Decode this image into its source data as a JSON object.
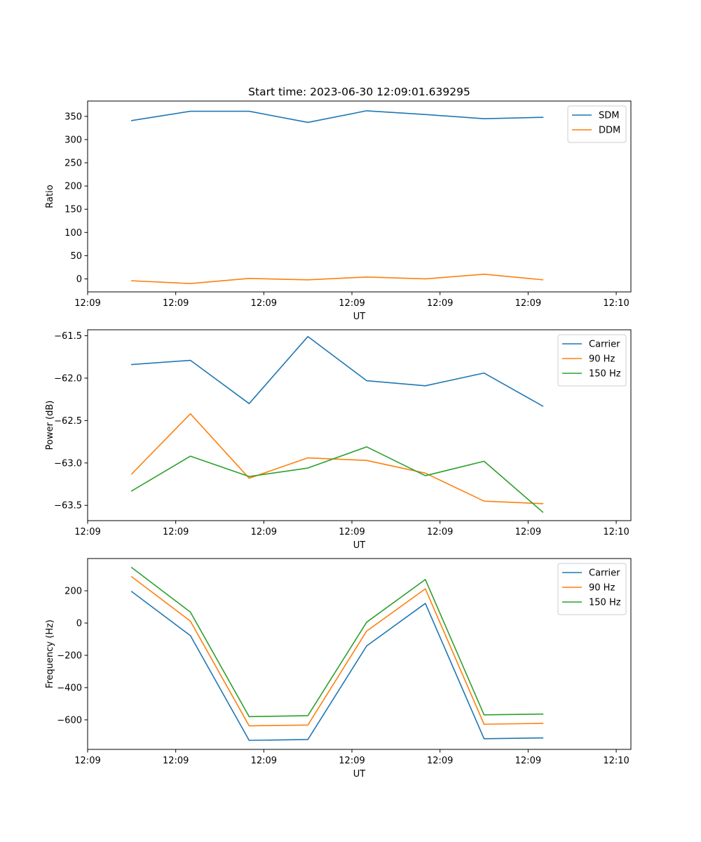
{
  "chart_data": [
    {
      "type": "line",
      "title": "Start time: 2023-06-30 12:09:01.639295",
      "xlabel": "UT",
      "ylabel": "Ratio",
      "xlim": [
        0,
        9.25
      ],
      "ylim": [
        -28,
        383
      ],
      "x_ticks": [
        {
          "x": 0,
          "label": "12:09"
        },
        {
          "x": 1.5,
          "label": "12:09"
        },
        {
          "x": 3,
          "label": "12:09"
        },
        {
          "x": 4.5,
          "label": "12:09"
        },
        {
          "x": 6,
          "label": "12:09"
        },
        {
          "x": 7.5,
          "label": "12:09"
        },
        {
          "x": 9,
          "label": "12:10"
        }
      ],
      "y_ticks": [
        0,
        50,
        100,
        150,
        200,
        250,
        300,
        350
      ],
      "x": [
        0.75,
        1.75,
        2.75,
        3.75,
        4.75,
        5.75,
        6.75,
        7.75
      ],
      "series": [
        {
          "name": "SDM",
          "color": "#1f77b4",
          "values": [
            341,
            361,
            361,
            337,
            362,
            354,
            345,
            348
          ]
        },
        {
          "name": "DDM",
          "color": "#ff7f0e",
          "values": [
            -4,
            -10,
            1,
            -2,
            4,
            0,
            10,
            -2
          ]
        }
      ],
      "legend": "top-right",
      "grid": false
    },
    {
      "type": "line",
      "title": "",
      "xlabel": "UT",
      "ylabel": "Power (dB)",
      "xlim": [
        0,
        9.25
      ],
      "ylim": [
        -63.68,
        -61.43
      ],
      "x_ticks": [
        {
          "x": 0,
          "label": "12:09"
        },
        {
          "x": 1.5,
          "label": "12:09"
        },
        {
          "x": 3,
          "label": "12:09"
        },
        {
          "x": 4.5,
          "label": "12:09"
        },
        {
          "x": 6,
          "label": "12:09"
        },
        {
          "x": 7.5,
          "label": "12:09"
        },
        {
          "x": 9,
          "label": "12:10"
        }
      ],
      "y_ticks": [
        {
          "v": -61.5,
          "label": "−61.5"
        },
        {
          "v": -62.0,
          "label": "−62.0"
        },
        {
          "v": -62.5,
          "label": "−62.5"
        },
        {
          "v": -63.0,
          "label": "−63.0"
        },
        {
          "v": -63.5,
          "label": "−63.5"
        }
      ],
      "x": [
        0.75,
        1.75,
        2.75,
        3.75,
        4.75,
        5.75,
        6.75,
        7.75
      ],
      "series": [
        {
          "name": "Carrier",
          "color": "#1f77b4",
          "values": [
            -61.84,
            -61.79,
            -62.3,
            -61.51,
            -62.03,
            -62.09,
            -61.94,
            -62.33
          ]
        },
        {
          "name": "90 Hz",
          "color": "#ff7f0e",
          "values": [
            -63.13,
            -62.42,
            -63.18,
            -62.94,
            -62.97,
            -63.12,
            -63.45,
            -63.48
          ]
        },
        {
          "name": "150 Hz",
          "color": "#2ca02c",
          "values": [
            -63.33,
            -62.92,
            -63.16,
            -63.06,
            -62.81,
            -63.15,
            -62.98,
            -63.58
          ]
        }
      ],
      "legend": "top-right",
      "grid": false
    },
    {
      "type": "line",
      "title": "",
      "xlabel": "UT",
      "ylabel": "Frequency (Hz)",
      "xlim": [
        0,
        9.25
      ],
      "ylim": [
        -783,
        400
      ],
      "x_ticks": [
        {
          "x": 0,
          "label": "12:09"
        },
        {
          "x": 1.5,
          "label": "12:09"
        },
        {
          "x": 3,
          "label": "12:09"
        },
        {
          "x": 4.5,
          "label": "12:09"
        },
        {
          "x": 6,
          "label": "12:09"
        },
        {
          "x": 7.5,
          "label": "12:09"
        },
        {
          "x": 9,
          "label": "12:10"
        }
      ],
      "y_ticks": [
        {
          "v": 200,
          "label": "200"
        },
        {
          "v": 0,
          "label": "0"
        },
        {
          "v": -200,
          "label": "−200"
        },
        {
          "v": -400,
          "label": "−400"
        },
        {
          "v": -600,
          "label": "−600"
        }
      ],
      "x": [
        0.75,
        1.75,
        2.75,
        3.75,
        4.75,
        5.75,
        6.75,
        7.75
      ],
      "series": [
        {
          "name": "Carrier",
          "color": "#1f77b4",
          "values": [
            195,
            -78,
            -727,
            -722,
            -142,
            122,
            -717,
            -712
          ]
        },
        {
          "name": "90 Hz",
          "color": "#ff7f0e",
          "values": [
            287,
            12,
            -637,
            -632,
            -50,
            212,
            -627,
            -622
          ]
        },
        {
          "name": "150 Hz",
          "color": "#2ca02c",
          "values": [
            344,
            68,
            -580,
            -574,
            5,
            270,
            -569,
            -564
          ]
        }
      ],
      "legend": "top-right",
      "grid": false
    }
  ]
}
